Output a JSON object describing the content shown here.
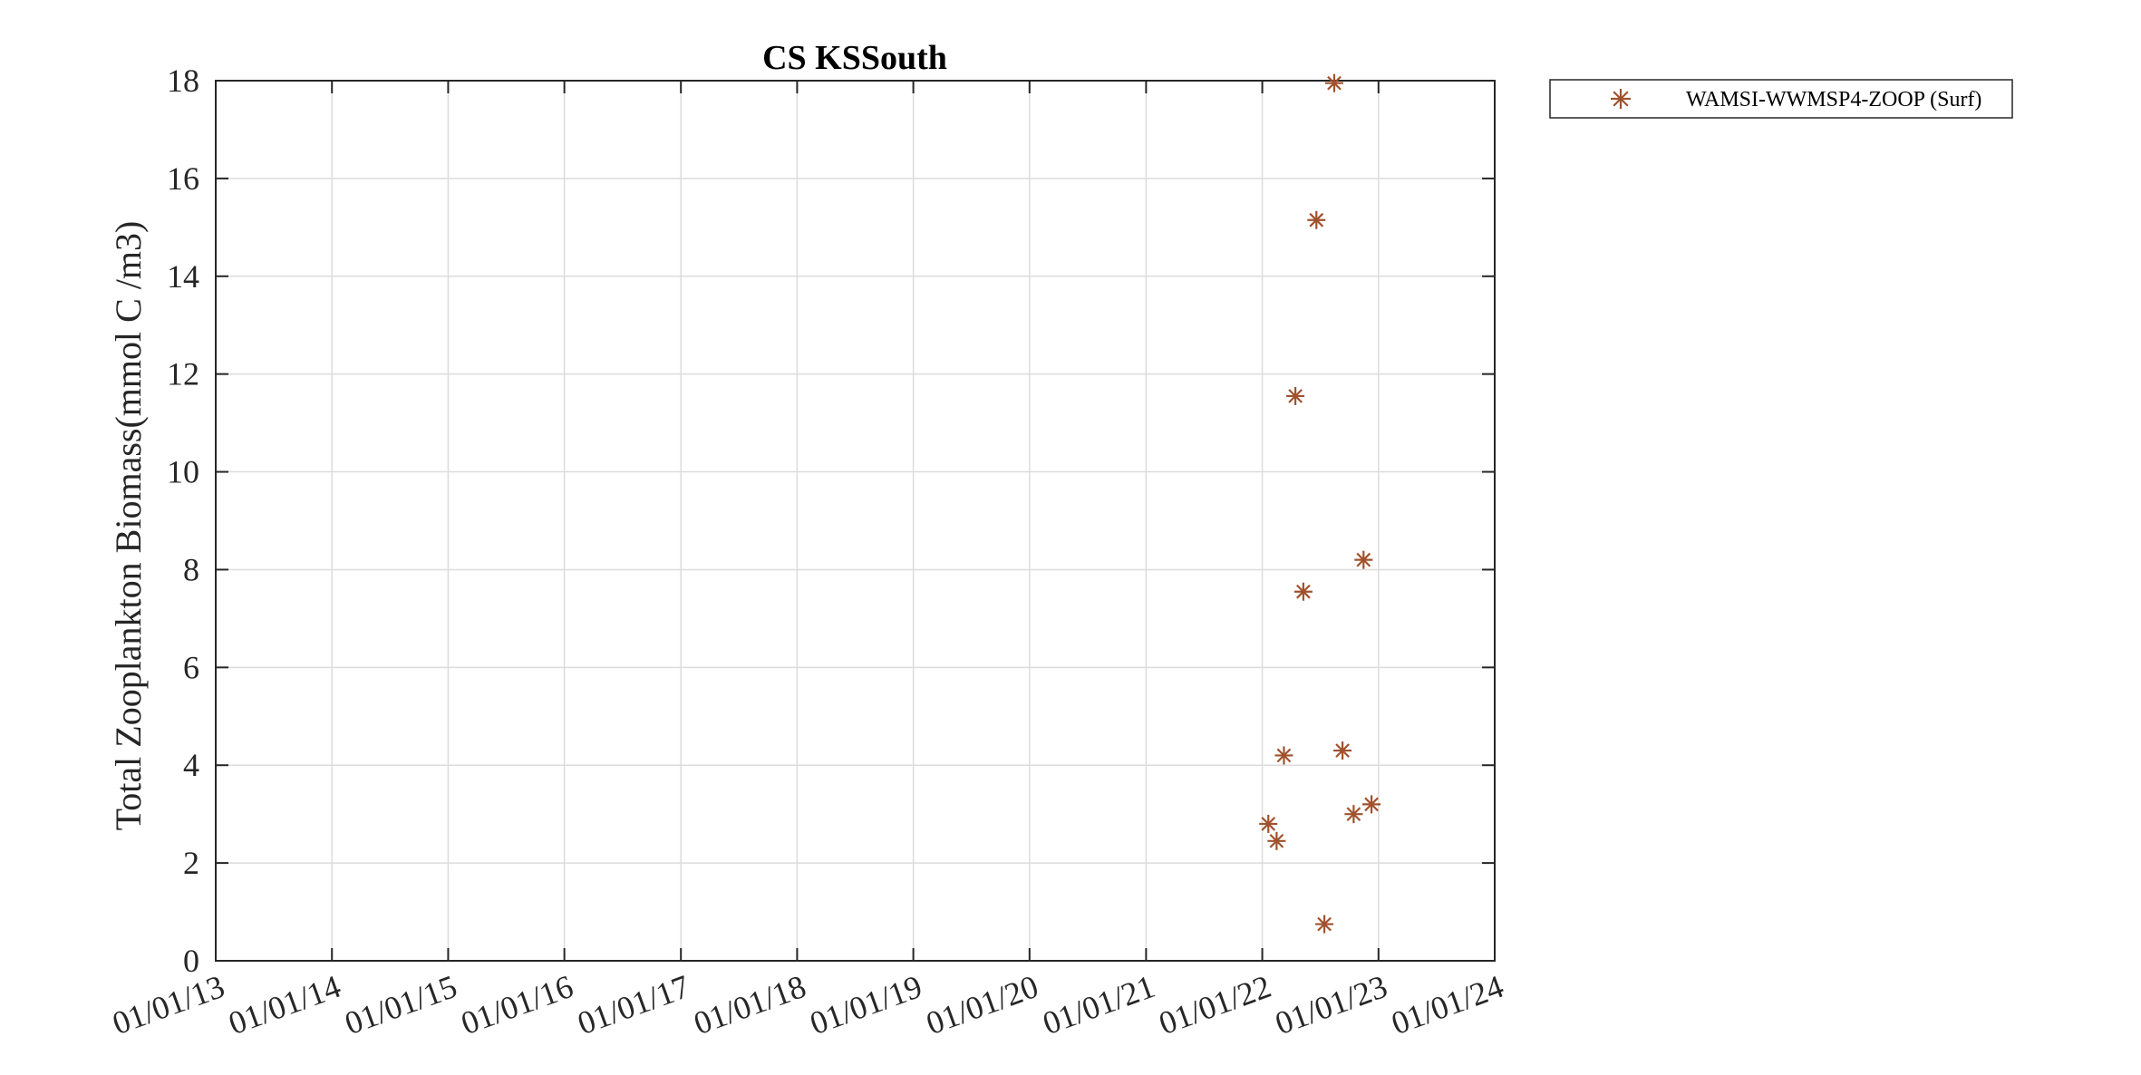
{
  "chart_data": {
    "type": "scatter",
    "title": "CS KSSouth",
    "xlabel": "",
    "ylabel": "Total Zooplankton Biomass(mmol C /m3)",
    "x_tick_labels": [
      "01/01/13",
      "01/01/14",
      "01/01/15",
      "01/01/16",
      "01/01/17",
      "01/01/18",
      "01/01/19",
      "01/01/20",
      "01/01/21",
      "01/01/22",
      "01/01/23",
      "01/01/24"
    ],
    "y_tick_labels": [
      "0",
      "2",
      "4",
      "6",
      "8",
      "10",
      "12",
      "14",
      "16",
      "18"
    ],
    "xlim": [
      "2013-01-01",
      "2024-01-01"
    ],
    "ylim": [
      0,
      18
    ],
    "grid": true,
    "legend_position": "outside top-right",
    "marker": "asterisk",
    "series": [
      {
        "name": "WAMSI-WWMSP4-ZOOP (Surf)",
        "color": "#A0522D",
        "points": [
          {
            "x": "2022-01-20",
            "y": 2.8
          },
          {
            "x": "2022-02-15",
            "y": 2.45
          },
          {
            "x": "2022-03-10",
            "y": 4.2
          },
          {
            "x": "2022-04-15",
            "y": 11.55
          },
          {
            "x": "2022-05-10",
            "y": 7.55
          },
          {
            "x": "2022-06-20",
            "y": 15.15
          },
          {
            "x": "2022-07-15",
            "y": 0.75
          },
          {
            "x": "2022-08-15",
            "y": 17.95
          },
          {
            "x": "2022-09-10",
            "y": 4.3
          },
          {
            "x": "2022-10-15",
            "y": 3.0
          },
          {
            "x": "2022-11-15",
            "y": 8.2
          },
          {
            "x": "2022-12-10",
            "y": 3.2
          }
        ]
      }
    ]
  }
}
